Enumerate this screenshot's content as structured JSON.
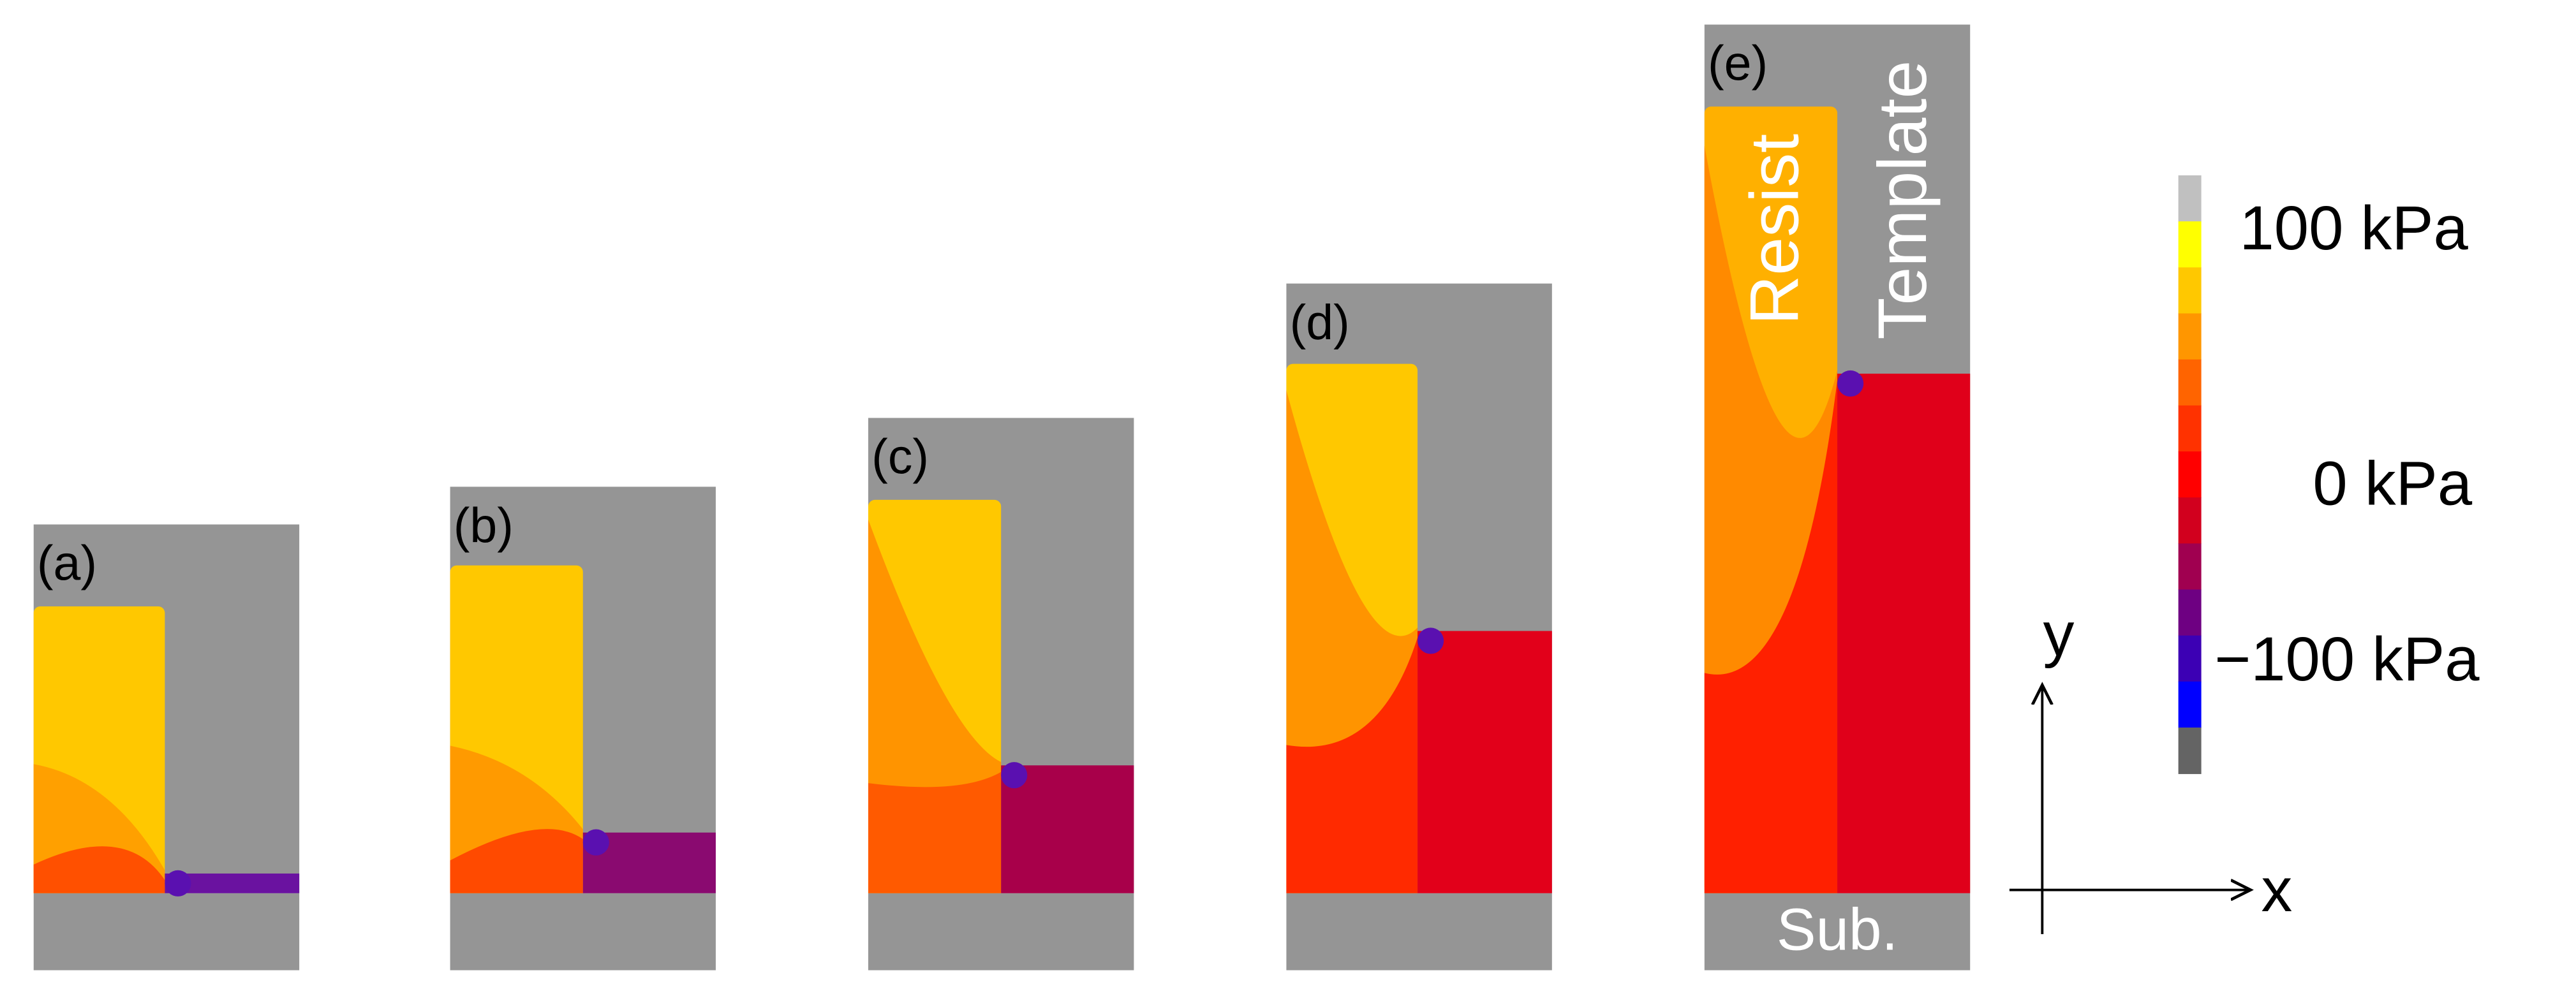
{
  "panels": [
    {
      "label": "(a)"
    },
    {
      "label": "(b)"
    },
    {
      "label": "(c)"
    },
    {
      "label": "(d)"
    },
    {
      "label": "(e)"
    }
  ],
  "materials": {
    "resist": "Resist",
    "template": "Template",
    "substrate": "Sub."
  },
  "colorbar": {
    "labels": [
      "100 kPa",
      "0   kPa",
      "−100 kPa"
    ]
  },
  "axes": {
    "y": "y",
    "x": "x"
  }
}
